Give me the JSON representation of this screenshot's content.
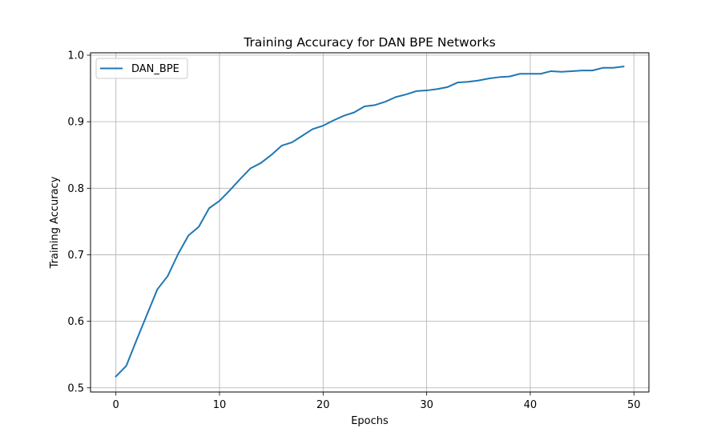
{
  "chart_data": {
    "type": "line",
    "title": "Training Accuracy for DAN BPE Networks",
    "xlabel": "Epochs",
    "ylabel": "Training Accuracy",
    "xlim": [
      -2.45,
      51.45
    ],
    "ylim": [
      0.4937,
      1.0036
    ],
    "xticks": [
      0,
      10,
      20,
      30,
      40,
      50
    ],
    "xtick_labels": [
      "0",
      "10",
      "20",
      "30",
      "40",
      "50"
    ],
    "yticks": [
      0.5,
      0.6,
      0.7,
      0.8,
      0.9,
      1.0
    ],
    "ytick_labels": [
      "0.5",
      "0.6",
      "0.7",
      "0.8",
      "0.9",
      "1.0"
    ],
    "grid": true,
    "legend": "upper-left",
    "series": [
      {
        "name": "DAN_BPE",
        "color": "#1f77b4",
        "x": [
          0,
          1,
          2,
          3,
          4,
          5,
          6,
          7,
          8,
          9,
          10,
          11,
          12,
          13,
          14,
          15,
          16,
          17,
          18,
          19,
          20,
          21,
          22,
          23,
          24,
          25,
          26,
          27,
          28,
          29,
          30,
          31,
          32,
          33,
          34,
          35,
          36,
          37,
          38,
          39,
          40,
          41,
          42,
          43,
          44,
          45,
          46,
          47,
          48,
          49
        ],
        "y": [
          0.517,
          0.533,
          0.572,
          0.61,
          0.648,
          0.668,
          0.701,
          0.729,
          0.742,
          0.77,
          0.781,
          0.797,
          0.814,
          0.83,
          0.838,
          0.85,
          0.864,
          0.869,
          0.879,
          0.889,
          0.894,
          0.902,
          0.909,
          0.914,
          0.923,
          0.925,
          0.93,
          0.937,
          0.941,
          0.946,
          0.947,
          0.949,
          0.952,
          0.959,
          0.96,
          0.962,
          0.965,
          0.967,
          0.968,
          0.972,
          0.972,
          0.972,
          0.976,
          0.975,
          0.976,
          0.977,
          0.977,
          0.981,
          0.981,
          0.983
        ]
      }
    ]
  }
}
